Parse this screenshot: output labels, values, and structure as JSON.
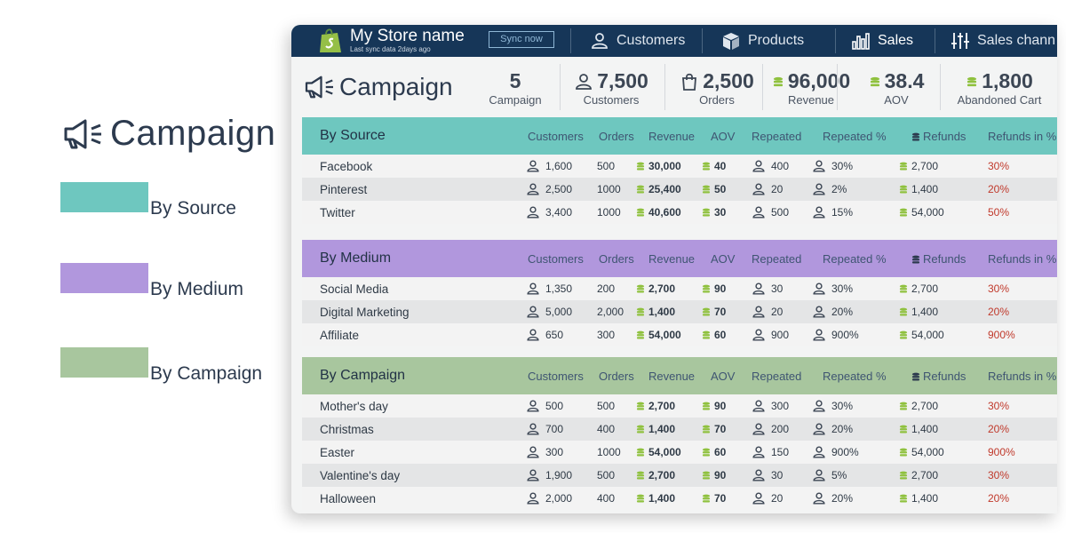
{
  "legend": {
    "title": "Campaign",
    "items": [
      {
        "label": "By Source",
        "color": "#6ec7bf"
      },
      {
        "label": "By Medium",
        "color": "#b197dd"
      },
      {
        "label": "By Campaign",
        "color": "#a8c69e"
      }
    ]
  },
  "topbar": {
    "store_name": "My Store name",
    "sync_info": "Last sync data 2days ago",
    "sync_button": "Sync now",
    "nav": [
      {
        "label": "Customers",
        "icon": "user-icon"
      },
      {
        "label": "Products",
        "icon": "box-icon"
      },
      {
        "label": "Sales",
        "icon": "bar-chart-icon",
        "active": true
      },
      {
        "label": "Sales chann",
        "icon": "sliders-icon"
      }
    ]
  },
  "stats": {
    "title": "Campaign",
    "items": [
      {
        "value": "5",
        "caption": "Campaign",
        "icon": ""
      },
      {
        "value": "7,500",
        "caption": "Customers",
        "icon": "user-icon"
      },
      {
        "value": "2,500",
        "caption": "Orders",
        "icon": "bag-icon"
      },
      {
        "value": "96,000",
        "caption": "Revenue",
        "icon": "coins-icon"
      },
      {
        "value": "38.4",
        "caption": "AOV",
        "icon": "coins-icon"
      },
      {
        "value": "1,800",
        "caption": "Abandoned Cart",
        "icon": "coins-icon"
      }
    ]
  },
  "columns": [
    "Customers",
    "Orders",
    "Revenue",
    "AOV",
    "Repeated",
    "Repeated %",
    "Refunds",
    "Refunds in %"
  ],
  "sections": [
    {
      "title": "By Source",
      "color": "#6ec7bf",
      "rows": [
        {
          "name": "Facebook",
          "customers": "1,600",
          "orders": "500",
          "revenue": "30,000",
          "aov": "40",
          "repeated": "400",
          "repeated_pct": "30%",
          "refunds": "2,700",
          "refunds_pct": "30%"
        },
        {
          "name": "Pinterest",
          "customers": "2,500",
          "orders": "1000",
          "revenue": "25,400",
          "aov": "50",
          "repeated": "20",
          "repeated_pct": "2%",
          "refunds": "1,400",
          "refunds_pct": "20%"
        },
        {
          "name": "Twitter",
          "customers": "3,400",
          "orders": "1000",
          "revenue": "40,600",
          "aov": "30",
          "repeated": "500",
          "repeated_pct": "15%",
          "refunds": "54,000",
          "refunds_pct": "50%"
        }
      ]
    },
    {
      "title": "By Medium",
      "color": "#b197dd",
      "rows": [
        {
          "name": "Social Media",
          "customers": "1,350",
          "orders": "200",
          "revenue": "2,700",
          "aov": "90",
          "repeated": "30",
          "repeated_pct": "30%",
          "refunds": "2,700",
          "refunds_pct": "30%"
        },
        {
          "name": "Digital Marketing",
          "customers": "5,000",
          "orders": "2,000",
          "revenue": "1,400",
          "aov": "70",
          "repeated": "20",
          "repeated_pct": "20%",
          "refunds": "1,400",
          "refunds_pct": "20%"
        },
        {
          "name": "Affiliate",
          "customers": "650",
          "orders": "300",
          "revenue": "54,000",
          "aov": "60",
          "repeated": "900",
          "repeated_pct": "900%",
          "refunds": "54,000",
          "refunds_pct": "900%"
        }
      ]
    },
    {
      "title": "By Campaign",
      "color": "#a8c69e",
      "rows": [
        {
          "name": "Mother's day",
          "customers": "500",
          "orders": "500",
          "revenue": "2,700",
          "aov": "90",
          "repeated": "300",
          "repeated_pct": "30%",
          "refunds": "2,700",
          "refunds_pct": "30%"
        },
        {
          "name": "Christmas",
          "customers": "700",
          "orders": "400",
          "revenue": "1,400",
          "aov": "70",
          "repeated": "200",
          "repeated_pct": "20%",
          "refunds": "1,400",
          "refunds_pct": "20%"
        },
        {
          "name": "Easter",
          "customers": "300",
          "orders": "1000",
          "revenue": "54,000",
          "aov": "60",
          "repeated": "150",
          "repeated_pct": "900%",
          "refunds": "54,000",
          "refunds_pct": "900%"
        },
        {
          "name": "Valentine's day",
          "customers": "1,900",
          "orders": "500",
          "revenue": "2,700",
          "aov": "90",
          "repeated": "30",
          "repeated_pct": "5%",
          "refunds": "2,700",
          "refunds_pct": "30%"
        },
        {
          "name": "Halloween",
          "customers": "2,000",
          "orders": "400",
          "revenue": "1,400",
          "aov": "70",
          "repeated": "20",
          "repeated_pct": "20%",
          "refunds": "1,400",
          "refunds_pct": "20%"
        }
      ]
    }
  ]
}
